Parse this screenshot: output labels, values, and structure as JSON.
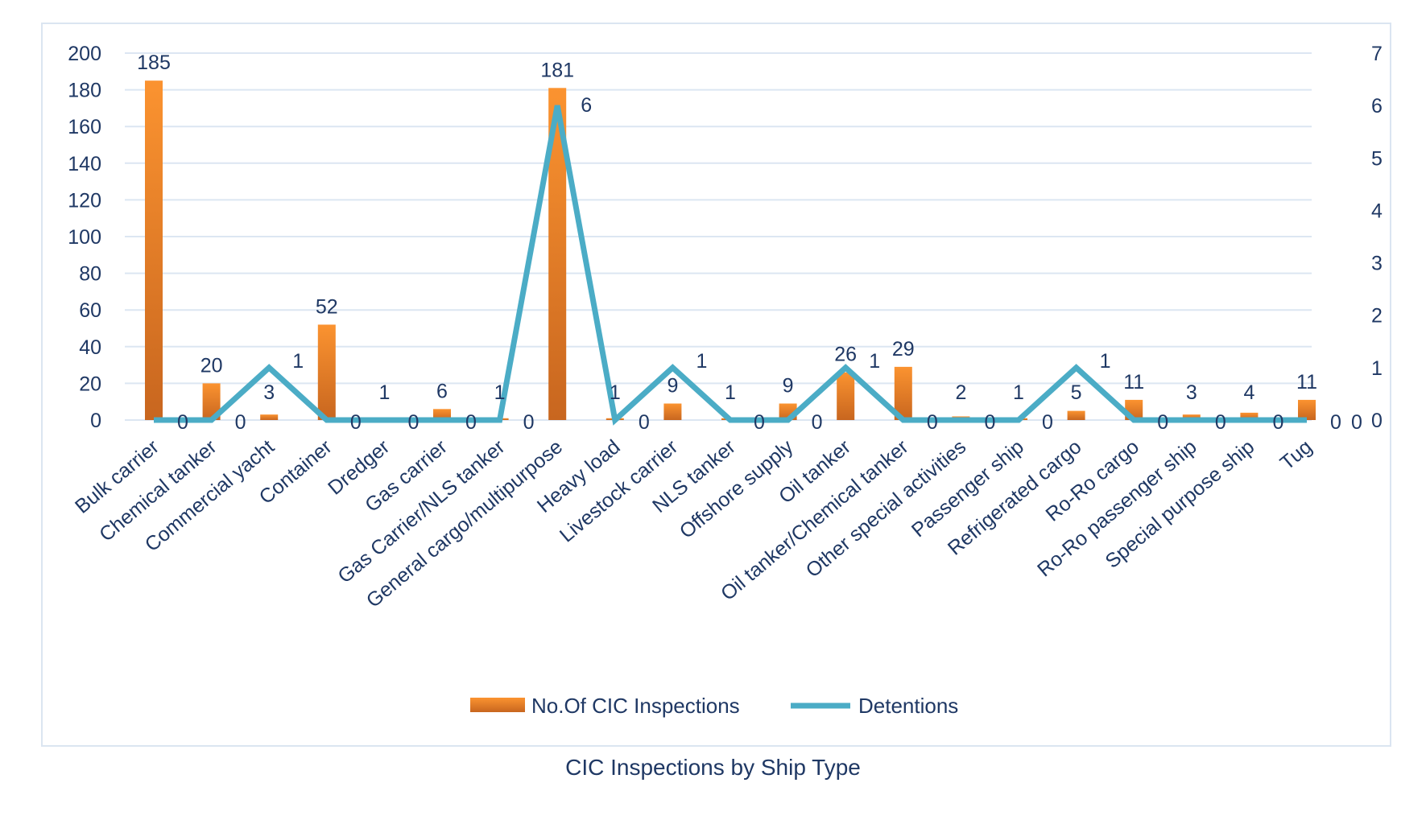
{
  "caption": "CIC Inspections by Ship Type",
  "chart_data": {
    "type": "bar+line",
    "title": "",
    "categories": [
      "Bulk carrier",
      "Chemical tanker",
      "Commercial yacht",
      "Container",
      "Dredger",
      "Gas carrier",
      "Gas Carrier/NLS tanker",
      "General cargo/multipurpose",
      "Heavy load",
      "Livestock carrier",
      "NLS tanker",
      "Offshore supply",
      "Oil tanker",
      "Oil tanker/Chemical tanker",
      "Other special activities",
      "Passenger ship",
      "Refrigerated cargo",
      "Ro-Ro cargo",
      "Ro-Ro passenger ship",
      "Special purpose ship",
      "Tug"
    ],
    "series": [
      {
        "name": "No.Of CIC Inspections",
        "type": "bar",
        "axis": "left",
        "color": "#f28e2b",
        "values": [
          185,
          20,
          3,
          52,
          1,
          6,
          1,
          181,
          1,
          9,
          1,
          9,
          26,
          29,
          2,
          1,
          5,
          11,
          3,
          4,
          11
        ]
      },
      {
        "name": "Detentions",
        "type": "line",
        "axis": "right",
        "color": "#4bacc6",
        "values": [
          0,
          0,
          1,
          0,
          0,
          0,
          0,
          6,
          0,
          1,
          0,
          0,
          1,
          0,
          0,
          0,
          1,
          0,
          0,
          0,
          0
        ]
      }
    ],
    "left_axis": {
      "ylim": [
        0,
        200
      ],
      "ticks": [
        0,
        20,
        40,
        60,
        80,
        100,
        120,
        140,
        160,
        180,
        200
      ]
    },
    "right_axis": {
      "ylim": [
        0,
        7
      ],
      "ticks": [
        0,
        1,
        2,
        3,
        4,
        5,
        6,
        7
      ]
    },
    "extra_labels": [
      "0",
      "0"
    ],
    "grid": true,
    "legend": "bottom"
  }
}
